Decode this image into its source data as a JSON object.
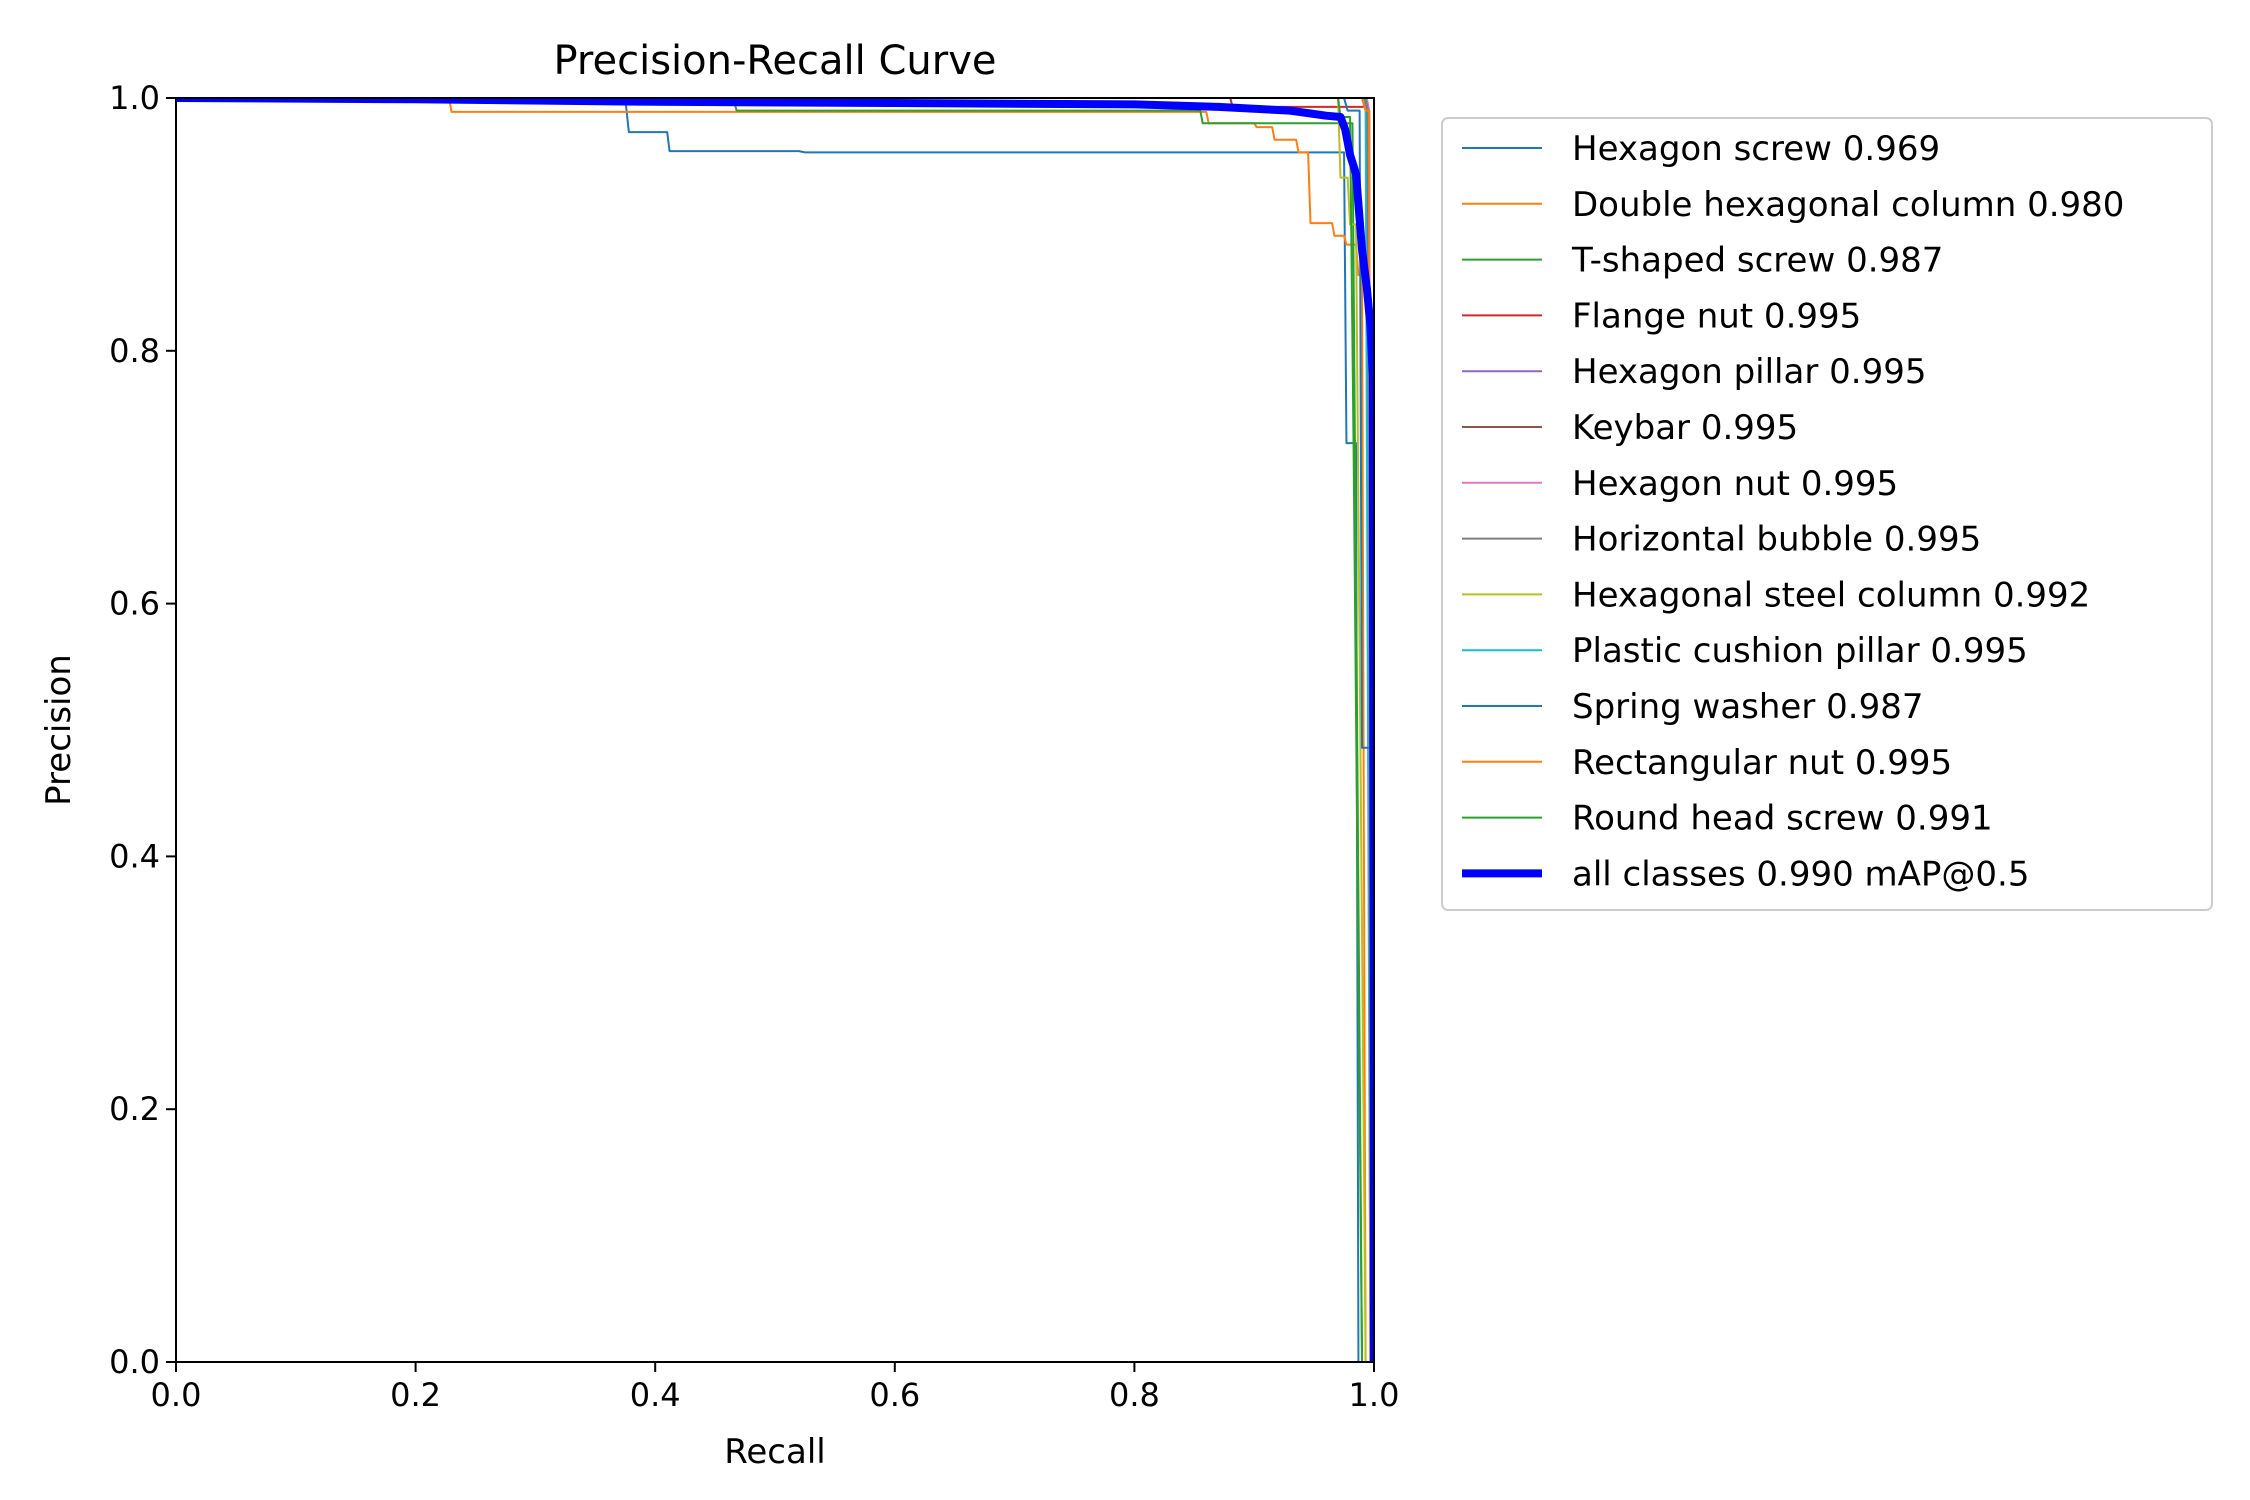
{
  "chart_data": {
    "type": "line",
    "title": "Precision-Recall Curve",
    "xlabel": "Recall",
    "ylabel": "Precision",
    "xlim": [
      0,
      1
    ],
    "ylim": [
      0,
      1
    ],
    "x_ticks": [
      "0.0",
      "0.2",
      "0.4",
      "0.6",
      "0.8",
      "1.0"
    ],
    "y_ticks": [
      "0.0",
      "0.2",
      "0.4",
      "0.6",
      "0.8",
      "1.0"
    ],
    "grid": false,
    "legend_position": "outside-right-top",
    "series": [
      {
        "name": "Hexagon screw 0.969",
        "color": "#1f77b4",
        "width": 2,
        "points": [
          [
            0,
            1
          ],
          [
            0.375,
            1
          ],
          [
            0.378,
            0.973
          ],
          [
            0.41,
            0.973
          ],
          [
            0.412,
            0.958
          ],
          [
            0.52,
            0.958
          ],
          [
            0.525,
            0.957
          ],
          [
            0.975,
            0.957
          ],
          [
            0.977,
            0.727
          ],
          [
            0.985,
            0.727
          ],
          [
            0.987,
            0
          ]
        ]
      },
      {
        "name": "Double hexagonal column 0.980",
        "color": "#ff7f0e",
        "width": 2,
        "points": [
          [
            0,
            1
          ],
          [
            0.228,
            1
          ],
          [
            0.23,
            0.989
          ],
          [
            0.86,
            0.989
          ],
          [
            0.862,
            0.98
          ],
          [
            0.9,
            0.98
          ],
          [
            0.902,
            0.977
          ],
          [
            0.915,
            0.977
          ],
          [
            0.917,
            0.967
          ],
          [
            0.935,
            0.967
          ],
          [
            0.937,
            0.957
          ],
          [
            0.945,
            0.957
          ],
          [
            0.947,
            0.901
          ],
          [
            0.965,
            0.901
          ],
          [
            0.967,
            0.891
          ],
          [
            0.975,
            0.891
          ],
          [
            0.977,
            0.884
          ],
          [
            0.985,
            0.884
          ],
          [
            0.987,
            0.86
          ],
          [
            0.99,
            0.86
          ],
          [
            0.993,
            0
          ]
        ]
      },
      {
        "name": "T-shaped screw 0.987",
        "color": "#2ca02c",
        "width": 2,
        "points": [
          [
            0,
            1
          ],
          [
            0.465,
            1
          ],
          [
            0.468,
            0.99
          ],
          [
            0.855,
            0.99
          ],
          [
            0.857,
            0.98
          ],
          [
            0.98,
            0.98
          ],
          [
            0.982,
            0.98
          ],
          [
            0.99,
            0
          ]
        ]
      },
      {
        "name": "Flange nut 0.995",
        "color": "#d62728",
        "width": 2,
        "points": [
          [
            0,
            1
          ],
          [
            0.88,
            1
          ],
          [
            0.882,
            0.993
          ],
          [
            0.995,
            0.993
          ],
          [
            0.996,
            0.985
          ],
          [
            0.998,
            0
          ]
        ]
      },
      {
        "name": "Hexagon pillar 0.995",
        "color": "#9467bd",
        "width": 2,
        "points": [
          [
            0,
            1
          ],
          [
            0.99,
            1
          ],
          [
            0.993,
            0.99
          ],
          [
            0.996,
            0.99
          ],
          [
            0.997,
            0
          ]
        ]
      },
      {
        "name": "Keybar 0.995",
        "color": "#8c564b",
        "width": 2,
        "points": [
          [
            0,
            1
          ],
          [
            0.992,
            1
          ],
          [
            0.994,
            0.99
          ],
          [
            0.997,
            0
          ]
        ]
      },
      {
        "name": "Hexagon nut 0.995",
        "color": "#e377c2",
        "width": 2,
        "points": [
          [
            0,
            1
          ],
          [
            0.994,
            1
          ],
          [
            0.996,
            0.99
          ],
          [
            0.998,
            0
          ]
        ]
      },
      {
        "name": "Horizontal bubble 0.995",
        "color": "#7f7f7f",
        "width": 2,
        "points": [
          [
            0,
            1
          ],
          [
            0.993,
            1
          ],
          [
            0.995,
            0.99
          ],
          [
            0.998,
            0
          ]
        ]
      },
      {
        "name": "Hexagonal steel column 0.992",
        "color": "#bcbd22",
        "width": 2,
        "points": [
          [
            0,
            1
          ],
          [
            0.97,
            1
          ],
          [
            0.972,
            0.937
          ],
          [
            0.978,
            0.937
          ],
          [
            0.98,
            0.9
          ],
          [
            0.985,
            0.9
          ],
          [
            0.993,
            0
          ]
        ]
      },
      {
        "name": "Plastic cushion pillar 0.995",
        "color": "#17becf",
        "width": 2,
        "points": [
          [
            0,
            1
          ],
          [
            0.991,
            1
          ],
          [
            0.993,
            0.99
          ],
          [
            0.997,
            0
          ]
        ]
      },
      {
        "name": "Spring washer 0.987",
        "color": "#1f77b4",
        "width": 2,
        "points": [
          [
            0,
            1
          ],
          [
            0.975,
            1
          ],
          [
            0.978,
            0.99
          ],
          [
            0.988,
            0.99
          ],
          [
            0.99,
            0.486
          ],
          [
            0.997,
            0.486
          ],
          [
            0.998,
            0
          ]
        ]
      },
      {
        "name": "Rectangular nut 0.995",
        "color": "#ff7f0e",
        "width": 2,
        "points": [
          [
            0,
            1
          ],
          [
            0.99,
            1
          ],
          [
            0.993,
            0.99
          ],
          [
            0.996,
            0.99
          ],
          [
            0.997,
            0
          ]
        ]
      },
      {
        "name": "Round head screw 0.991",
        "color": "#2ca02c",
        "width": 2,
        "points": [
          [
            0,
            1
          ],
          [
            0.97,
            1
          ],
          [
            0.972,
            0.985
          ],
          [
            0.98,
            0.985
          ],
          [
            0.983,
            0.72
          ],
          [
            0.99,
            0
          ]
        ]
      },
      {
        "name": "all classes 0.990 mAP@0.5",
        "color": "#0000ff",
        "width": 8,
        "points": [
          [
            0,
            1
          ],
          [
            0.2,
            0.999
          ],
          [
            0.4,
            0.997
          ],
          [
            0.6,
            0.996
          ],
          [
            0.8,
            0.995
          ],
          [
            0.87,
            0.993
          ],
          [
            0.93,
            0.99
          ],
          [
            0.96,
            0.986
          ],
          [
            0.972,
            0.985
          ],
          [
            0.976,
            0.975
          ],
          [
            0.98,
            0.955
          ],
          [
            0.985,
            0.94
          ],
          [
            0.99,
            0.88
          ],
          [
            0.994,
            0.85
          ],
          [
            0.997,
            0.82
          ],
          [
            0.999,
            0.78
          ],
          [
            1.0,
            0
          ]
        ]
      }
    ]
  }
}
